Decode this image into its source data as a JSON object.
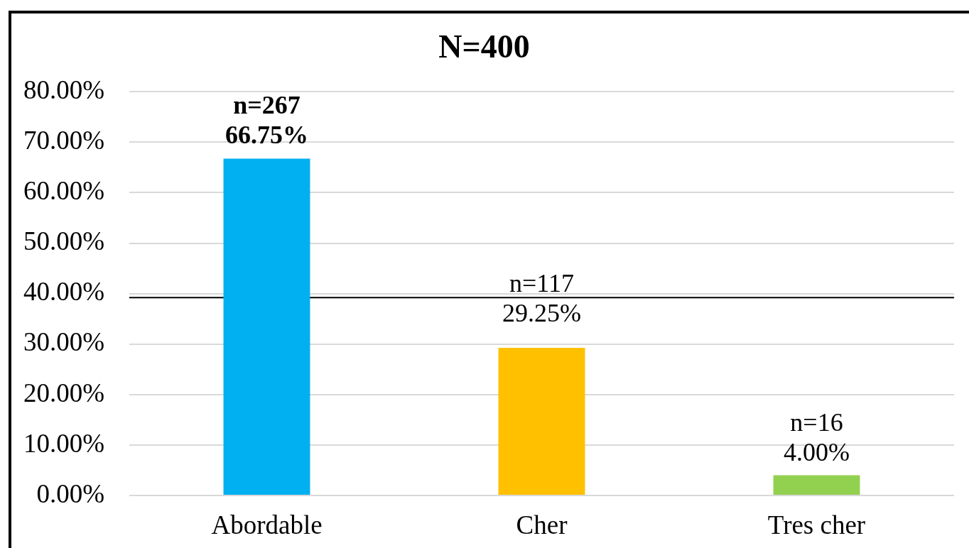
{
  "chart_data": {
    "type": "bar",
    "title": "N=400",
    "categories": [
      "Abordable",
      "Cher",
      "Tres cher"
    ],
    "values": [
      66.75,
      29.25,
      4.0
    ],
    "colors": [
      "#00b0f0",
      "#ffc000",
      "#92d050"
    ],
    "value_labels": [
      "n=267\n66.75%",
      "n=117\n29.25%",
      "n=16\n4.00%"
    ],
    "ylim": [
      0,
      80
    ],
    "yticks": [
      {
        "value": 0,
        "label": "0.00%"
      },
      {
        "value": 10,
        "label": "10.00%"
      },
      {
        "value": 20,
        "label": "20.00%"
      },
      {
        "value": 30,
        "label": "30.00%"
      },
      {
        "value": 40,
        "label": "40.00%"
      },
      {
        "value": 50,
        "label": "50.00%"
      },
      {
        "value": 60,
        "label": "60.00%"
      },
      {
        "value": 70,
        "label": "70.00%"
      },
      {
        "value": 80,
        "label": "80.00%"
      }
    ],
    "ref_lines": [
      {
        "axis": "y",
        "value": 39.2,
        "color": "#000000"
      }
    ],
    "grid": "y"
  }
}
